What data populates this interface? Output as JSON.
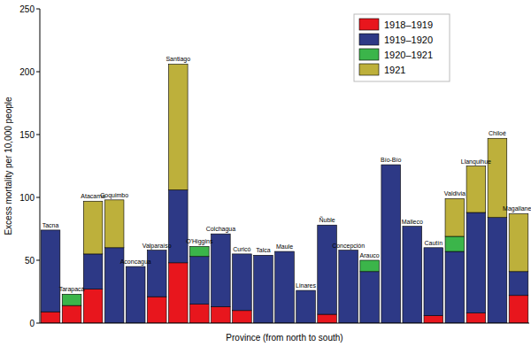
{
  "chart_data": {
    "type": "bar",
    "stacked": true,
    "legend": "upper right",
    "x_label": "Province (from north to south)",
    "y_label": "Excess mortality per 10,000 people",
    "categories": [
      "Tacna",
      "Tarapacá",
      "Atacama",
      "Coquimbo",
      "Aconcagua",
      "Valparaíso",
      "Santiago",
      "O'Higgins",
      "Colchagua",
      "Curicó",
      "Talca",
      "Maule",
      "Linares",
      "Ñuble",
      "Concepción",
      "Arauco",
      "Bío-Bío",
      "Malleco",
      "Cautín",
      "Valdivia",
      "Llanquihue",
      "Chiloé",
      "Magallanes"
    ],
    "series": [
      {
        "name": "1918–1919",
        "color": "#e8161d",
        "values": [
          9,
          14,
          27,
          0,
          0,
          21,
          48,
          15,
          13,
          10,
          0,
          0,
          0,
          7,
          0,
          0,
          0,
          0,
          6,
          0,
          8,
          0,
          22
        ]
      },
      {
        "name": "1919–1920",
        "color": "#2d3986",
        "values": [
          65,
          0,
          28,
          60,
          45,
          37,
          58,
          38,
          58,
          45,
          54,
          57,
          26,
          71,
          58,
          41,
          126,
          77,
          54,
          57,
          80,
          84,
          19
        ]
      },
      {
        "name": "1920–1921",
        "color": "#3bb54a",
        "values": [
          0,
          9,
          0,
          0,
          0,
          0,
          0,
          8,
          0,
          0,
          0,
          0,
          0,
          0,
          0,
          9,
          0,
          0,
          0,
          12,
          0,
          0,
          0
        ]
      },
      {
        "name": "1921",
        "color": "#bdb03b",
        "values": [
          0,
          0,
          42,
          38,
          0,
          0,
          100,
          0,
          0,
          0,
          0,
          0,
          0,
          0,
          0,
          0,
          0,
          0,
          0,
          30,
          37,
          63,
          46
        ]
      }
    ],
    "ylim": [
      0,
      250
    ],
    "yticks": [
      0,
      50,
      100,
      150,
      200,
      250
    ]
  }
}
